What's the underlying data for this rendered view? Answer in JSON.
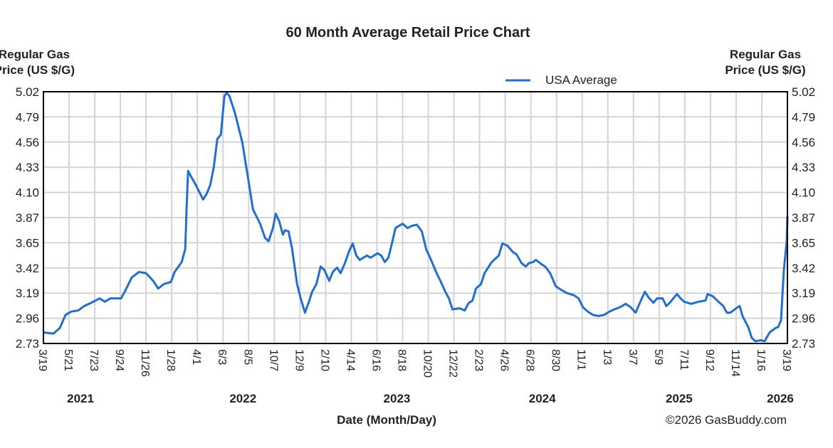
{
  "chart_data": {
    "type": "line",
    "title": "60 Month Average Retail Price Chart",
    "ylabel_left": [
      "Regular Gas",
      "Price (US $/G)"
    ],
    "ylabel_right": [
      "Regular Gas",
      "Price (US $/G)"
    ],
    "xlabel": "Date (Month/Day)",
    "credit": "©2026 GasBuddy.com",
    "x_unit": "weeks since 3/19/2021",
    "xlim": [
      0,
      261
    ],
    "ylim": [
      2.73,
      5.02
    ],
    "grid": true,
    "legend_position": "top-right",
    "y_ticks": [
      "5.02",
      "4.79",
      "4.56",
      "4.33",
      "4.10",
      "3.87",
      "3.65",
      "3.42",
      "3.19",
      "2.96",
      "2.73"
    ],
    "x_tick_step_weeks": 9,
    "x_ticks": [
      "3/19",
      "5/21",
      "7/23",
      "9/24",
      "11/26",
      "1/28",
      "4/1",
      "6/3",
      "8/5",
      "10/7",
      "12/9",
      "2/10",
      "4/14",
      "6/16",
      "8/18",
      "10/20",
      "12/22",
      "2/23",
      "4/26",
      "6/28",
      "8/30",
      "11/1",
      "1/3",
      "3/7",
      "5/9",
      "7/11",
      "9/12",
      "11/14",
      "1/16",
      "3/19"
    ],
    "years": [
      {
        "label": "2021",
        "x": 13
      },
      {
        "label": "2022",
        "x": 70
      },
      {
        "label": "2023",
        "x": 124
      },
      {
        "label": "2024",
        "x": 175
      },
      {
        "label": "2025",
        "x": 223
      },
      {
        "label": "2026",
        "x": 258.5
      }
    ],
    "colors": {
      "line": "#1f6fd0",
      "grid": "#d4d4d4",
      "axis": "#000000",
      "credit": "#a8a8a8"
    },
    "series": [
      {
        "name": "USA Average",
        "x": [
          0,
          3.5,
          5.75,
          7.75,
          9.75,
          12.25,
          14.25,
          16,
          17.5,
          19.75,
          21.5,
          23.5,
          27.25,
          28.5,
          31,
          33.5,
          36,
          38.5,
          40.25,
          42.25,
          44.75,
          46,
          48.5,
          49.75,
          50.25,
          50.75,
          51.75,
          53.5,
          56,
          57.25,
          58.5,
          59.75,
          61,
          62.25,
          63.5,
          64.25,
          65.25,
          67.25,
          69.75,
          71.75,
          73.5,
          76,
          77.75,
          79,
          80.5,
          81.5,
          82.75,
          84,
          84.75,
          86,
          87.25,
          89,
          90.25,
          91.75,
          93,
          94.25,
          95.75,
          97.25,
          98.5,
          100.25,
          101.5,
          103,
          104.25,
          105.75,
          107.25,
          108.5,
          109.75,
          111,
          112.25,
          113.5,
          114.75,
          116,
          117.25,
          118.5,
          119.75,
          121,
          122.25,
          123.5,
          126,
          127.75,
          129.25,
          131,
          132.75,
          134.25,
          136,
          137.75,
          139.25,
          141,
          142.25,
          143.5,
          146,
          147.75,
          149.25,
          150.5,
          151.75,
          153.5,
          154.75,
          157.25,
          159.75,
          161,
          162.75,
          164.75,
          166,
          167.75,
          169.25,
          170.25,
          171.75,
          172.75,
          174.75,
          176,
          177.75,
          179.75,
          181.5,
          183.5,
          186,
          187.75,
          189.25,
          191,
          192.75,
          194.75,
          196.75,
          198.5,
          200.25,
          202.25,
          204.25,
          206,
          207.75,
          209.25,
          211,
          212.25,
          214,
          215.25,
          217.25,
          218.5,
          219.75,
          221,
          222.25,
          223.5,
          224.75,
          227.25,
          229.75,
          232.25,
          233,
          234.75,
          237.25,
          238.5,
          239.75,
          241,
          243,
          244.25,
          245.25,
          247.25,
          248.5,
          249.75,
          251.75,
          253,
          254.75,
          256.75,
          257.75,
          258.75,
          259.75,
          260.75,
          261
        ],
        "y": [
          2.83,
          2.82,
          2.87,
          2.99,
          3.02,
          3.03,
          3.07,
          3.09,
          3.11,
          3.14,
          3.11,
          3.14,
          3.14,
          3.2,
          3.33,
          3.38,
          3.37,
          3.3,
          3.23,
          3.27,
          3.29,
          3.38,
          3.47,
          3.59,
          3.98,
          4.3,
          4.25,
          4.17,
          4.04,
          4.09,
          4.17,
          4.33,
          4.59,
          4.63,
          4.98,
          5.01,
          4.98,
          4.82,
          4.56,
          4.24,
          3.95,
          3.82,
          3.69,
          3.66,
          3.78,
          3.91,
          3.84,
          3.72,
          3.76,
          3.75,
          3.59,
          3.27,
          3.14,
          3.01,
          3.1,
          3.2,
          3.27,
          3.43,
          3.4,
          3.3,
          3.38,
          3.42,
          3.37,
          3.46,
          3.57,
          3.64,
          3.53,
          3.49,
          3.51,
          3.53,
          3.51,
          3.53,
          3.55,
          3.53,
          3.47,
          3.51,
          3.64,
          3.78,
          3.82,
          3.78,
          3.8,
          3.81,
          3.75,
          3.59,
          3.49,
          3.38,
          3.3,
          3.2,
          3.14,
          3.04,
          3.05,
          3.03,
          3.1,
          3.12,
          3.23,
          3.27,
          3.37,
          3.47,
          3.53,
          3.64,
          3.62,
          3.56,
          3.54,
          3.46,
          3.43,
          3.46,
          3.47,
          3.49,
          3.45,
          3.43,
          3.37,
          3.25,
          3.22,
          3.19,
          3.17,
          3.14,
          3.06,
          3.02,
          2.99,
          2.98,
          2.99,
          3.02,
          3.04,
          3.06,
          3.09,
          3.06,
          3.01,
          3.1,
          3.2,
          3.15,
          3.1,
          3.14,
          3.14,
          3.07,
          3.1,
          3.14,
          3.18,
          3.14,
          3.11,
          3.09,
          3.11,
          3.12,
          3.18,
          3.16,
          3.1,
          3.07,
          3.01,
          3.01,
          3.05,
          3.07,
          2.98,
          2.88,
          2.78,
          2.75,
          2.76,
          2.75,
          2.83,
          2.87,
          2.88,
          2.94,
          3.4,
          3.66,
          3.89
        ]
      }
    ]
  }
}
